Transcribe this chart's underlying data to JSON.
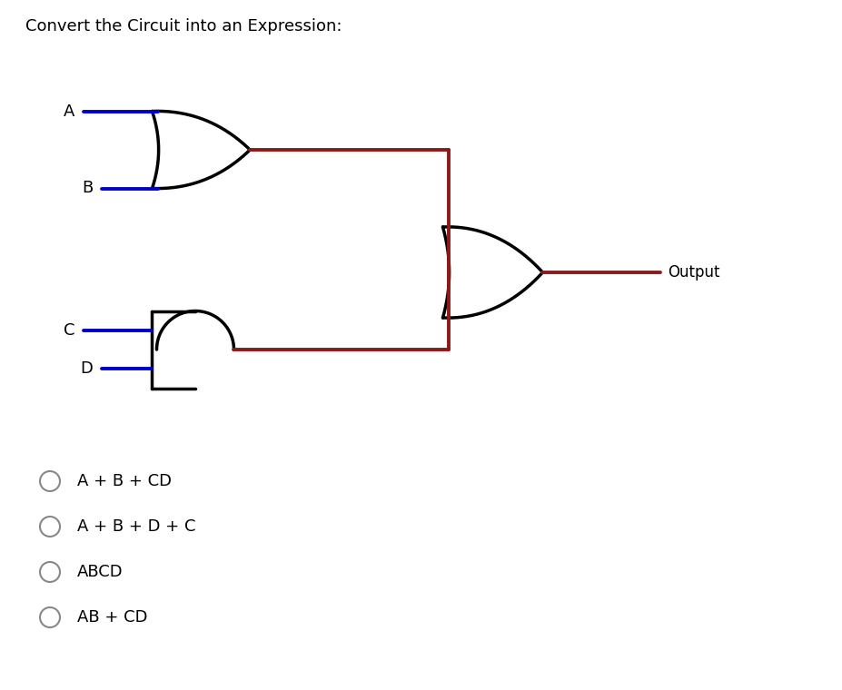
{
  "title": "Convert the Circuit into an Expression:",
  "background_color": "#ffffff",
  "input_color": "#0000cc",
  "wire_color": "#8B1a1a",
  "gate_color": "#000000",
  "output_label": "Output",
  "options": [
    "A + B + CD",
    "A + B + D + C",
    "ABCD",
    "AB + CD"
  ],
  "fig_width": 9.28,
  "fig_height": 7.6,
  "dpi": 100
}
